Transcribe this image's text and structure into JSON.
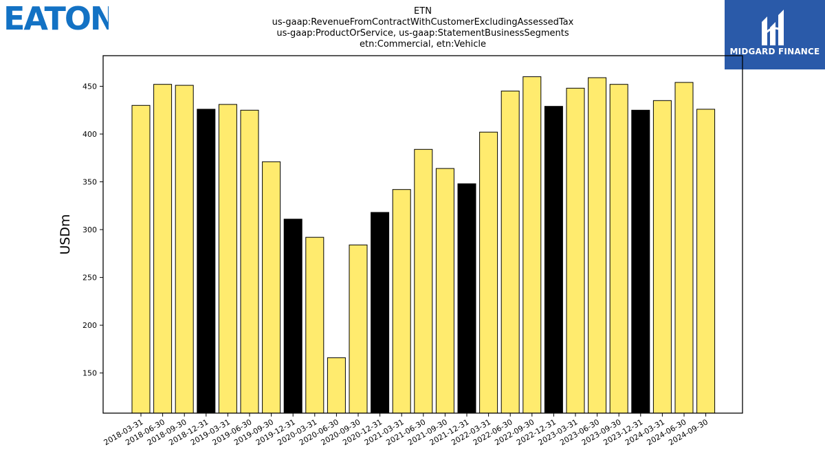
{
  "logos": {
    "left_brand": "EATON",
    "right_brand": "MIDGARD FINANCE"
  },
  "colors": {
    "bar_default": "#ffeb6e",
    "bar_highlight": "#000000",
    "bar_edge": "#000000",
    "eaton_blue": "#1372c4",
    "midgard_blue": "#2a5aa9"
  },
  "chart_data": {
    "type": "bar",
    "title_lines": [
      "ETN",
      "us-gaap:RevenueFromContractWithCustomerExcludingAssessedTax",
      "us-gaap:ProductOrService, us-gaap:StatementBusinessSegments",
      "etn:Commercial, etn:Vehicle"
    ],
    "xlabel": "",
    "ylabel": "USDm",
    "ylim": [
      108,
      482
    ],
    "yticks": [
      150,
      200,
      250,
      300,
      350,
      400,
      450
    ],
    "grid": false,
    "legend": "none",
    "categories": [
      "2018-03-31",
      "2018-06-30",
      "2018-09-30",
      "2018-12-31",
      "2019-03-31",
      "2019-06-30",
      "2019-09-30",
      "2019-12-31",
      "2020-03-31",
      "2020-06-30",
      "2020-09-30",
      "2020-12-31",
      "2021-03-31",
      "2021-06-30",
      "2021-09-30",
      "2021-12-31",
      "2022-03-31",
      "2022-06-30",
      "2022-09-30",
      "2022-12-31",
      "2023-03-31",
      "2023-06-30",
      "2023-09-30",
      "2023-12-31",
      "2024-03-31",
      "2024-06-30",
      "2024-09-30"
    ],
    "values": [
      430,
      452,
      451,
      426,
      431,
      425,
      371,
      311,
      292,
      166,
      284,
      318,
      342,
      384,
      364,
      348,
      402,
      445,
      460,
      429,
      448,
      459,
      452,
      425,
      435,
      454,
      426
    ],
    "highlighted": [
      false,
      false,
      false,
      true,
      false,
      false,
      false,
      true,
      false,
      false,
      false,
      true,
      false,
      false,
      false,
      true,
      false,
      false,
      false,
      true,
      false,
      false,
      false,
      true,
      false,
      false,
      false
    ]
  }
}
